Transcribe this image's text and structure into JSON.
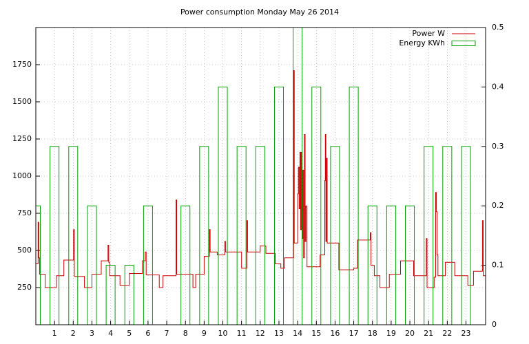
{
  "chart_data": {
    "type": "line",
    "title": "Power consumption Monday May 26 2014",
    "xlim": [
      0,
      24.05
    ],
    "xticks": [
      1,
      2,
      3,
      4,
      5,
      6,
      7,
      8,
      9,
      10,
      11,
      12,
      13,
      14,
      15,
      16,
      17,
      18,
      19,
      20,
      21,
      22,
      23
    ],
    "ylim": [
      0,
      2000
    ],
    "yticks": [
      250,
      500,
      750,
      1000,
      1250,
      1500,
      1750
    ],
    "y2lim": [
      0,
      0.5
    ],
    "y2ticks": [
      0,
      0.1,
      0.2,
      0.3,
      0.4,
      0.5
    ],
    "grid": true,
    "legend": "top-right",
    "series": [
      {
        "name": "Power W",
        "color": "#cc0000",
        "x": [
          0,
          0.12,
          0.16,
          0.2,
          0.5,
          1.1,
          1.5,
          2.02,
          2.06,
          2.6,
          3.0,
          3.5,
          3.86,
          3.9,
          3.95,
          4.5,
          5.0,
          5.7,
          5.85,
          5.9,
          6.6,
          6.8,
          7.5,
          7.53,
          8.4,
          8.55,
          9.0,
          9.28,
          9.32,
          9.7,
          10.1,
          10.15,
          11.0,
          11.28,
          11.32,
          12.0,
          12.3,
          12.8,
          13.1,
          13.3,
          13.78,
          13.82,
          14.0,
          14.04,
          14.08,
          14.12,
          14.16,
          14.2,
          14.24,
          14.28,
          14.32,
          14.36,
          14.4,
          14.44,
          14.5,
          15.2,
          15.45,
          15.48,
          15.51,
          15.54,
          15.58,
          16.2,
          17.0,
          17.2,
          17.88,
          17.92,
          18.1,
          18.4,
          18.9,
          19.5,
          20.2,
          20.88,
          20.92,
          21.3,
          21.38,
          21.42,
          21.46,
          21.5,
          21.9,
          22.4,
          23.1,
          23.4,
          23.88,
          23.92,
          24.05
        ],
        "values": [
          410,
          690,
          450,
          340,
          250,
          330,
          435,
          640,
          325,
          250,
          340,
          430,
          535,
          420,
          330,
          265,
          345,
          430,
          490,
          335,
          250,
          330,
          840,
          340,
          250,
          340,
          460,
          640,
          490,
          470,
          560,
          490,
          380,
          700,
          490,
          530,
          480,
          410,
          380,
          450,
          1710,
          550,
          880,
          1060,
          780,
          1160,
          640,
          1160,
          580,
          1040,
          450,
          1280,
          560,
          800,
          390,
          470,
          970,
          1280,
          560,
          1120,
          550,
          370,
          380,
          570,
          620,
          400,
          330,
          250,
          340,
          430,
          330,
          580,
          250,
          320,
          890,
          760,
          470,
          330,
          420,
          330,
          265,
          360,
          700,
          330,
          330
        ]
      },
      {
        "name": "Energy KWh",
        "color": "#00a000",
        "type": "bar",
        "axis": "y2",
        "x": [
          0,
          1,
          2,
          3,
          4,
          5,
          6,
          7,
          8,
          9,
          10,
          11,
          12,
          13,
          14,
          15,
          16,
          17,
          18,
          19,
          20,
          21,
          22,
          23
        ],
        "values": [
          0.2,
          0.3,
          0.3,
          0.2,
          0.1,
          0.1,
          0.2,
          0,
          0.2,
          0.3,
          0.4,
          0.3,
          0.3,
          0.4,
          0.5,
          0.4,
          0.3,
          0.4,
          0.2,
          0.2,
          0.2,
          0.3,
          0.3,
          0.3
        ]
      }
    ]
  }
}
